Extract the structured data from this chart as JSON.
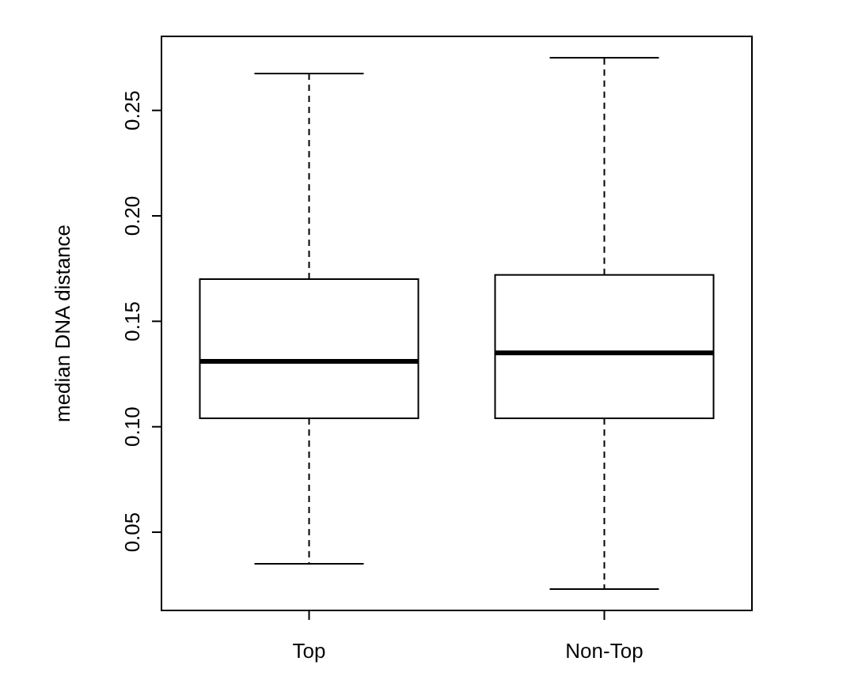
{
  "chart_data": {
    "type": "box",
    "ylabel": "median DNA distance",
    "categories": [
      "Top",
      "Non-Top"
    ],
    "boxes": [
      {
        "low": 0.035,
        "q1": 0.104,
        "median": 0.131,
        "q3": 0.17,
        "high": 0.2675
      },
      {
        "low": 0.023,
        "q1": 0.104,
        "median": 0.135,
        "q3": 0.172,
        "high": 0.275
      }
    ],
    "ylim": [
      0.0129,
      0.2851
    ],
    "yticks": [
      0.05,
      {
        "value": 0.1,
        "label": "0.10"
      },
      0.15,
      {
        "value": 0.2,
        "label": "0.20"
      },
      0.25
    ]
  }
}
